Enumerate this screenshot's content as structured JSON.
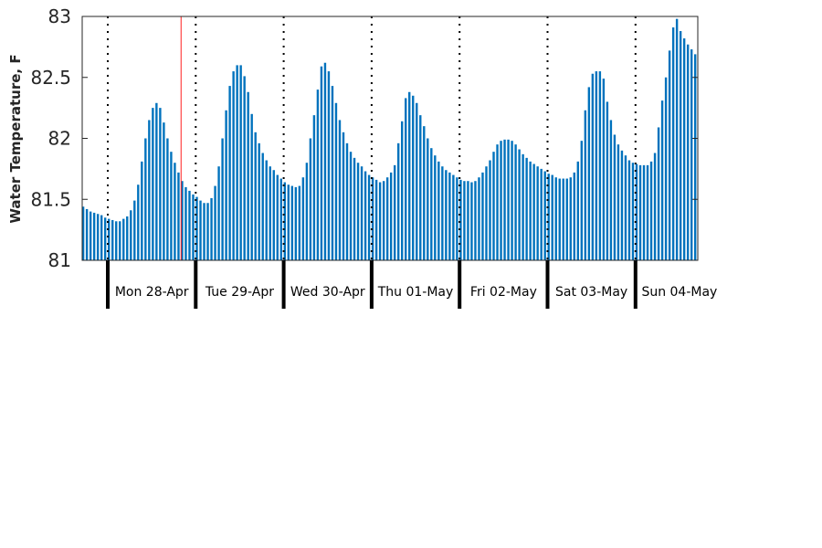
{
  "chart_data": {
    "type": "bar",
    "ylabel": "Water Temperature, F",
    "ylim": [
      81,
      83
    ],
    "yticks": [
      "81",
      "81.5",
      "82",
      "82.5",
      "83"
    ],
    "grid": false,
    "bar_color": "#0072bd",
    "current_marker_color": "#ff2020",
    "current_marker_hour": 27,
    "day_labels": [
      "Mon 28-Apr",
      "Tue 29-Apr",
      "Wed 30-Apr",
      "Thu 01-May",
      "Fri 02-May",
      "Sat 03-May",
      "Sun 04-May"
    ],
    "interval_hours": 1,
    "values": [
      81.44,
      81.42,
      81.4,
      81.39,
      81.38,
      81.37,
      81.35,
      81.34,
      81.33,
      81.32,
      81.32,
      81.34,
      81.36,
      81.41,
      81.49,
      81.62,
      81.81,
      82.0,
      82.15,
      82.25,
      82.29,
      82.25,
      82.13,
      82.0,
      81.89,
      81.8,
      81.72,
      81.65,
      81.6,
      81.57,
      81.54,
      81.52,
      81.49,
      81.47,
      81.47,
      81.51,
      81.61,
      81.77,
      82.0,
      82.23,
      82.43,
      82.55,
      82.6,
      82.6,
      82.51,
      82.38,
      82.2,
      82.05,
      81.96,
      81.88,
      81.82,
      81.77,
      81.74,
      81.7,
      81.67,
      81.64,
      81.62,
      81.61,
      81.6,
      81.61,
      81.68,
      81.8,
      82.0,
      82.19,
      82.4,
      82.59,
      82.62,
      82.55,
      82.43,
      82.29,
      82.15,
      82.05,
      81.96,
      81.89,
      81.84,
      81.8,
      81.77,
      81.73,
      81.7,
      81.68,
      81.66,
      81.64,
      81.65,
      81.68,
      81.72,
      81.78,
      81.96,
      82.14,
      82.33,
      82.38,
      82.35,
      82.29,
      82.19,
      82.1,
      82.0,
      81.92,
      81.86,
      81.81,
      81.77,
      81.74,
      81.72,
      81.7,
      81.68,
      81.66,
      81.65,
      81.65,
      81.64,
      81.65,
      81.68,
      81.72,
      81.77,
      81.82,
      81.89,
      81.95,
      81.98,
      81.99,
      81.99,
      81.98,
      81.95,
      81.91,
      81.87,
      81.84,
      81.81,
      81.79,
      81.77,
      81.75,
      81.73,
      81.71,
      81.7,
      81.68,
      81.67,
      81.67,
      81.67,
      81.68,
      81.72,
      81.81,
      81.98,
      82.23,
      82.42,
      82.53,
      82.55,
      82.55,
      82.49,
      82.3,
      82.15,
      82.03,
      81.95,
      81.9,
      81.86,
      81.82,
      81.8,
      81.79,
      81.78,
      81.78,
      81.78,
      81.81,
      81.88,
      82.09,
      82.31,
      82.5,
      82.72,
      82.91,
      82.98,
      82.88,
      82.82,
      82.77,
      82.73,
      82.69,
      82.61
    ]
  }
}
